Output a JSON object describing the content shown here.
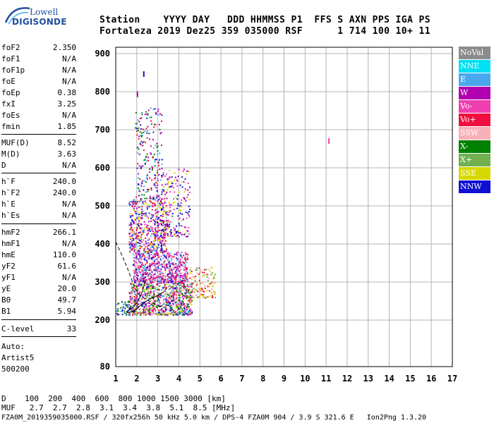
{
  "logo": {
    "line1": "Lowell",
    "line2": "DIGISONDE"
  },
  "header": {
    "labels": "Station    YYYY DAY   DDD HHMMSS P1  FFS S AXN PPS IGA PS",
    "values": "Fortaleza 2019 Dez25 359 035000 RSF      1 714 100 10+ 11"
  },
  "params": [
    {
      "name": "foF2",
      "value": "2.350"
    },
    {
      "name": "foF1",
      "value": "N/A"
    },
    {
      "name": "foF1p",
      "value": "N/A"
    },
    {
      "name": "foE",
      "value": "N/A"
    },
    {
      "name": "foEp",
      "value": "0.38"
    },
    {
      "name": "fxI",
      "value": "3.25"
    },
    {
      "name": "foEs",
      "value": "N/A"
    },
    {
      "name": "fmin",
      "value": "1.85"
    },
    {
      "name": "MUF(D)",
      "value": "8.52"
    },
    {
      "name": "M(D)",
      "value": "3.63"
    },
    {
      "name": "D",
      "value": "N/A"
    },
    {
      "name": "h`F",
      "value": "240.0"
    },
    {
      "name": "h`F2",
      "value": "240.0"
    },
    {
      "name": "h`E",
      "value": "N/A"
    },
    {
      "name": "h`Es",
      "value": "N/A"
    },
    {
      "name": "hmF2",
      "value": "266.1"
    },
    {
      "name": "hmF1",
      "value": "N/A"
    },
    {
      "name": "hmE",
      "value": "110.0"
    },
    {
      "name": "yF2",
      "value": "61.6"
    },
    {
      "name": "yF1",
      "value": "N/A"
    },
    {
      "name": "yE",
      "value": "20.0"
    },
    {
      "name": "B0",
      "value": "49.7"
    },
    {
      "name": "B1",
      "value": "5.94"
    },
    {
      "name": "C-level",
      "value": "33"
    }
  ],
  "autoscaler": {
    "line1": "Auto:",
    "line2": "Artist5",
    "line3": "500200"
  },
  "legend": [
    {
      "label": "NoVal",
      "color": "#8c8c8c"
    },
    {
      "label": "NNE",
      "color": "#00e0f0"
    },
    {
      "label": "E",
      "color": "#4aa8f0"
    },
    {
      "label": "W",
      "color": "#b000b0"
    },
    {
      "label": "Vo-",
      "color": "#f040b0"
    },
    {
      "label": "Vo+",
      "color": "#f01040"
    },
    {
      "label": "SSW",
      "color": "#f8b0b8"
    },
    {
      "label": "X-",
      "color": "#008000"
    },
    {
      "label": "X+",
      "color": "#70b050"
    },
    {
      "label": "SSE",
      "color": "#d8d800"
    },
    {
      "label": "NNW",
      "color": "#1010d0"
    }
  ],
  "footer": {
    "distance_row": "D    100  200  400  600  800 1000 1500 3000 [km]",
    "muf_row": "MUF   2.7  2.7  2.8  3.1  3.4  3.8  5.1  8.5 [MHz]",
    "file_info": "FZA0M_2019359035000.RSF / 320fx256h 50 kHz 5.0 km / DPS-4 FZA0M 904 / 3.9 S 321.6 E   Ion2Png 1.3.20"
  },
  "chart_data": {
    "type": "scatter",
    "x_ticks": [
      1,
      2,
      3,
      4,
      5,
      6,
      7,
      8,
      9,
      10,
      11,
      12,
      13,
      14,
      15,
      16,
      17
    ],
    "y_ticks": [
      200,
      300,
      400,
      500,
      600,
      700,
      800,
      900
    ],
    "y_bottom_label": 80,
    "xlim": [
      1,
      17
    ],
    "ylim": [
      80,
      900
    ],
    "grid": true,
    "legend_position": "right",
    "series_colors": [
      "#8c8c8c",
      "#00e0f0",
      "#4aa8f0",
      "#b000b0",
      "#f040b0",
      "#f01040",
      "#f8b0b8",
      "#008000",
      "#70b050",
      "#d8d800",
      "#1010d0"
    ],
    "regions": [
      {
        "freq": [
          1.6,
          4.6
        ],
        "height": [
          215,
          300
        ],
        "density": 900,
        "colors": [
          7,
          8,
          5,
          4,
          10,
          2,
          9,
          3,
          6
        ]
      },
      {
        "freq": [
          1.8,
          4.4
        ],
        "height": [
          300,
          380
        ],
        "density": 700,
        "colors": [
          3,
          4,
          10,
          2,
          5,
          6
        ]
      },
      {
        "freq": [
          1.6,
          3.4
        ],
        "height": [
          380,
          520
        ],
        "density": 500,
        "colors": [
          10,
          3,
          4,
          2,
          5,
          9
        ]
      },
      {
        "freq": [
          2.8,
          4.5
        ],
        "height": [
          420,
          600
        ],
        "density": 260,
        "colors": [
          9,
          10,
          3,
          4
        ]
      },
      {
        "freq": [
          1.9,
          3.2
        ],
        "height": [
          520,
          760
        ],
        "density": 200,
        "colors": [
          10,
          3,
          2,
          7,
          5
        ]
      },
      {
        "freq": [
          4.3,
          5.7
        ],
        "height": [
          260,
          340
        ],
        "density": 150,
        "colors": [
          6,
          5,
          9,
          8
        ]
      },
      {
        "freq": [
          1.0,
          1.6
        ],
        "height": [
          215,
          250
        ],
        "density": 40,
        "colors": [
          2,
          10,
          7
        ]
      }
    ],
    "isolated_points": [
      {
        "freq": 11.1,
        "height": 672,
        "color": 4
      },
      {
        "freq": 2.3,
        "height": 848,
        "color": 10
      },
      {
        "freq": 2.0,
        "height": 795,
        "color": 3
      }
    ],
    "trace_curves": [
      {
        "points": [
          [
            1.0,
            405
          ],
          [
            1.3,
            370
          ],
          [
            1.6,
            330
          ],
          [
            1.9,
            285
          ],
          [
            2.2,
            262
          ],
          [
            2.6,
            250
          ],
          [
            3.0,
            238
          ],
          [
            3.5,
            230
          ]
        ]
      },
      {
        "points": [
          [
            1.5,
            222
          ],
          [
            1.8,
            232
          ],
          [
            2.0,
            245
          ],
          [
            2.2,
            265
          ],
          [
            2.35,
            290
          ],
          [
            2.4,
            305
          ]
        ]
      },
      {
        "points": [
          [
            1.5,
            218
          ],
          [
            1.9,
            225
          ],
          [
            2.2,
            240
          ],
          [
            2.6,
            255
          ],
          [
            3.0,
            265
          ],
          [
            3.3,
            275
          ]
        ]
      }
    ]
  }
}
